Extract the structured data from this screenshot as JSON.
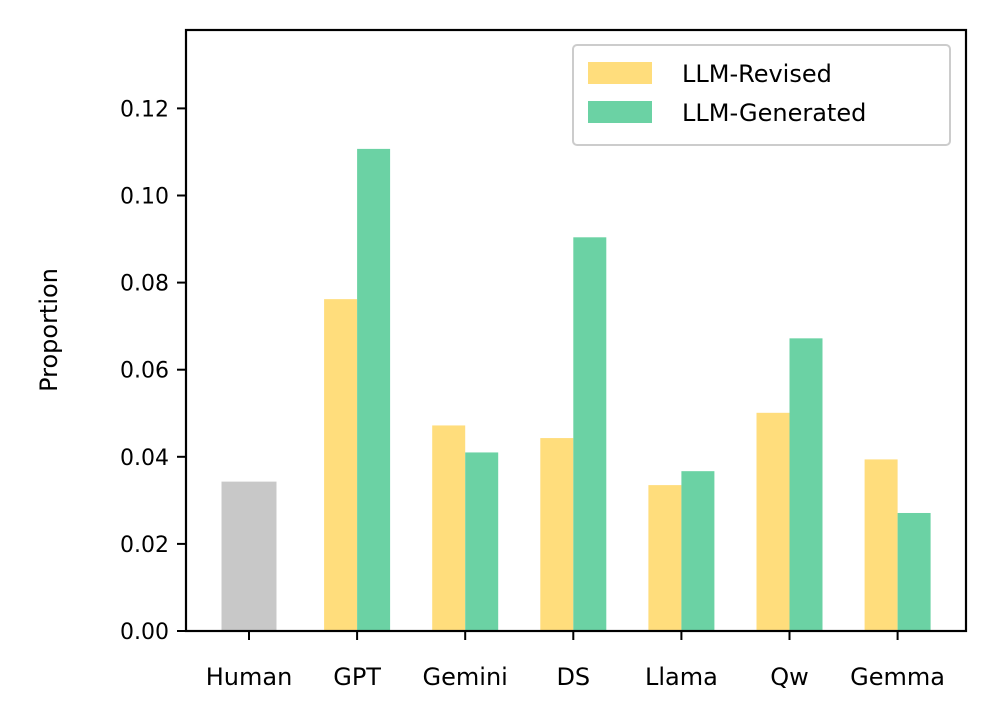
{
  "chart_data": {
    "type": "bar",
    "title": "",
    "xlabel": "",
    "ylabel": "Proportion",
    "ylim": [
      0,
      0.138
    ],
    "yticks": [
      "0.00",
      "0.02",
      "0.04",
      "0.06",
      "0.08",
      "0.10",
      "0.12"
    ],
    "categories": [
      "Human",
      "GPT",
      "Gemini",
      "DS",
      "Llama",
      "Qw",
      "Gemma"
    ],
    "human_value": 0.0343,
    "human_color": "#c8c8c8",
    "series": [
      {
        "name": "LLM-Revised",
        "color": "#ffdd7c",
        "values": [
          null,
          0.0762,
          0.0472,
          0.0443,
          0.0335,
          0.0501,
          0.0394
        ]
      },
      {
        "name": "LLM-Generated",
        "color": "#6bd2a4",
        "values": [
          null,
          0.1107,
          0.041,
          0.0904,
          0.0367,
          0.0672,
          0.0271
        ]
      }
    ],
    "legend": {
      "position": "top-right"
    }
  }
}
